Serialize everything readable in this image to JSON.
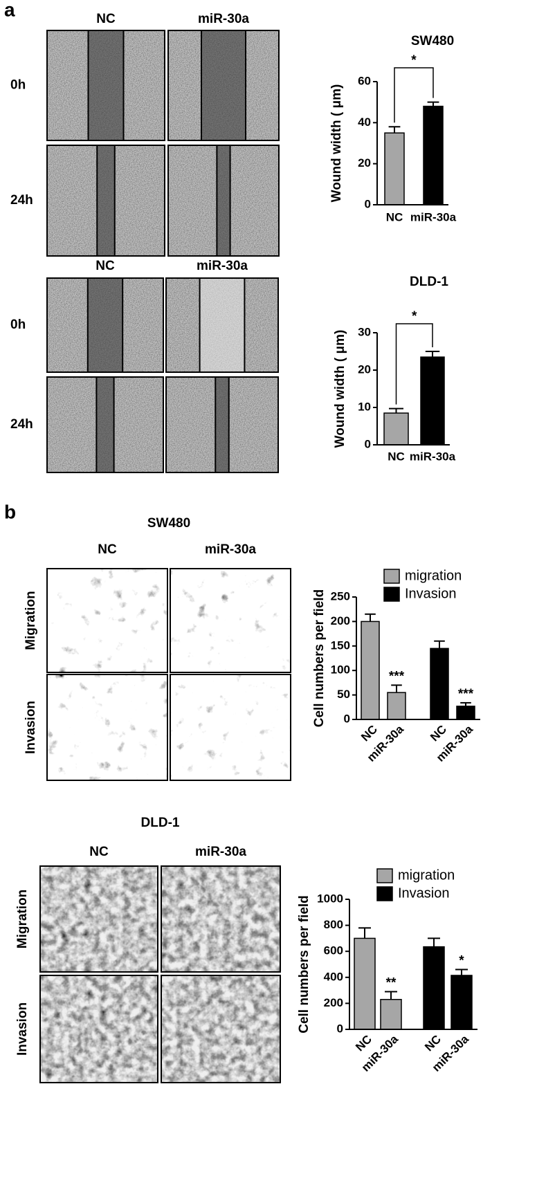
{
  "panel_labels": [
    "a",
    "b"
  ],
  "image_panels": [
    {
      "columns": [
        "NC",
        "miR-30a"
      ],
      "rows": [
        "0h",
        "24h"
      ]
    },
    {
      "columns": [
        "NC",
        "miR-30a"
      ],
      "rows": [
        "0h",
        "24h"
      ]
    },
    {
      "title": "SW480",
      "columns": [
        "NC",
        "miR-30a"
      ],
      "rows": [
        "Migration",
        "Invasion"
      ]
    },
    {
      "title": "DLD-1",
      "columns": [
        "NC",
        "miR-30a"
      ],
      "rows": [
        "Migration",
        "Invasion"
      ]
    }
  ],
  "chart_data": [
    {
      "type": "bar",
      "title": "SW480",
      "ylabel": "Wound width ( μm)",
      "categories": [
        "NC",
        "miR-30a"
      ],
      "values": [
        35,
        48
      ],
      "errors": [
        3,
        2
      ],
      "colors": [
        "#a6a6a6",
        "#000000"
      ],
      "ylim": [
        0,
        60
      ],
      "yticks": [
        0,
        20,
        40,
        60
      ],
      "annotation": "*"
    },
    {
      "type": "bar",
      "title": "DLD-1",
      "ylabel": "Wound width ( μm)",
      "categories": [
        "NC",
        "miR-30a"
      ],
      "values": [
        8.5,
        23.5
      ],
      "errors": [
        1.2,
        1.5
      ],
      "colors": [
        "#a6a6a6",
        "#000000"
      ],
      "ylim": [
        0,
        30
      ],
      "yticks": [
        0,
        10,
        20,
        30
      ],
      "annotation": "*"
    },
    {
      "type": "grouped_bar",
      "ylabel": "Cell numbers per field",
      "categories": [
        "NC",
        "miR-30a"
      ],
      "series": [
        {
          "name": "migration",
          "color": "#a6a6a6",
          "values": [
            200,
            55
          ],
          "errors": [
            15,
            15
          ],
          "significance": "***"
        },
        {
          "name": "Invasion",
          "color": "#000000",
          "values": [
            145,
            27
          ],
          "errors": [
            15,
            7
          ],
          "significance": "***"
        }
      ],
      "ylim": [
        0,
        250
      ],
      "yticks": [
        0,
        50,
        100,
        150,
        200,
        250
      ],
      "legend": "upper right"
    },
    {
      "type": "grouped_bar",
      "ylabel": "Cell numbers per field",
      "categories": [
        "NC",
        "miR-30a"
      ],
      "series": [
        {
          "name": "migration",
          "color": "#a6a6a6",
          "values": [
            700,
            230
          ],
          "errors": [
            80,
            60
          ],
          "significance": "**"
        },
        {
          "name": "Invasion",
          "color": "#000000",
          "values": [
            635,
            415
          ],
          "errors": [
            65,
            45
          ],
          "significance": "*"
        }
      ],
      "ylim": [
        0,
        1000
      ],
      "yticks": [
        0,
        200,
        400,
        600,
        800,
        1000
      ],
      "legend": "upper right"
    }
  ]
}
